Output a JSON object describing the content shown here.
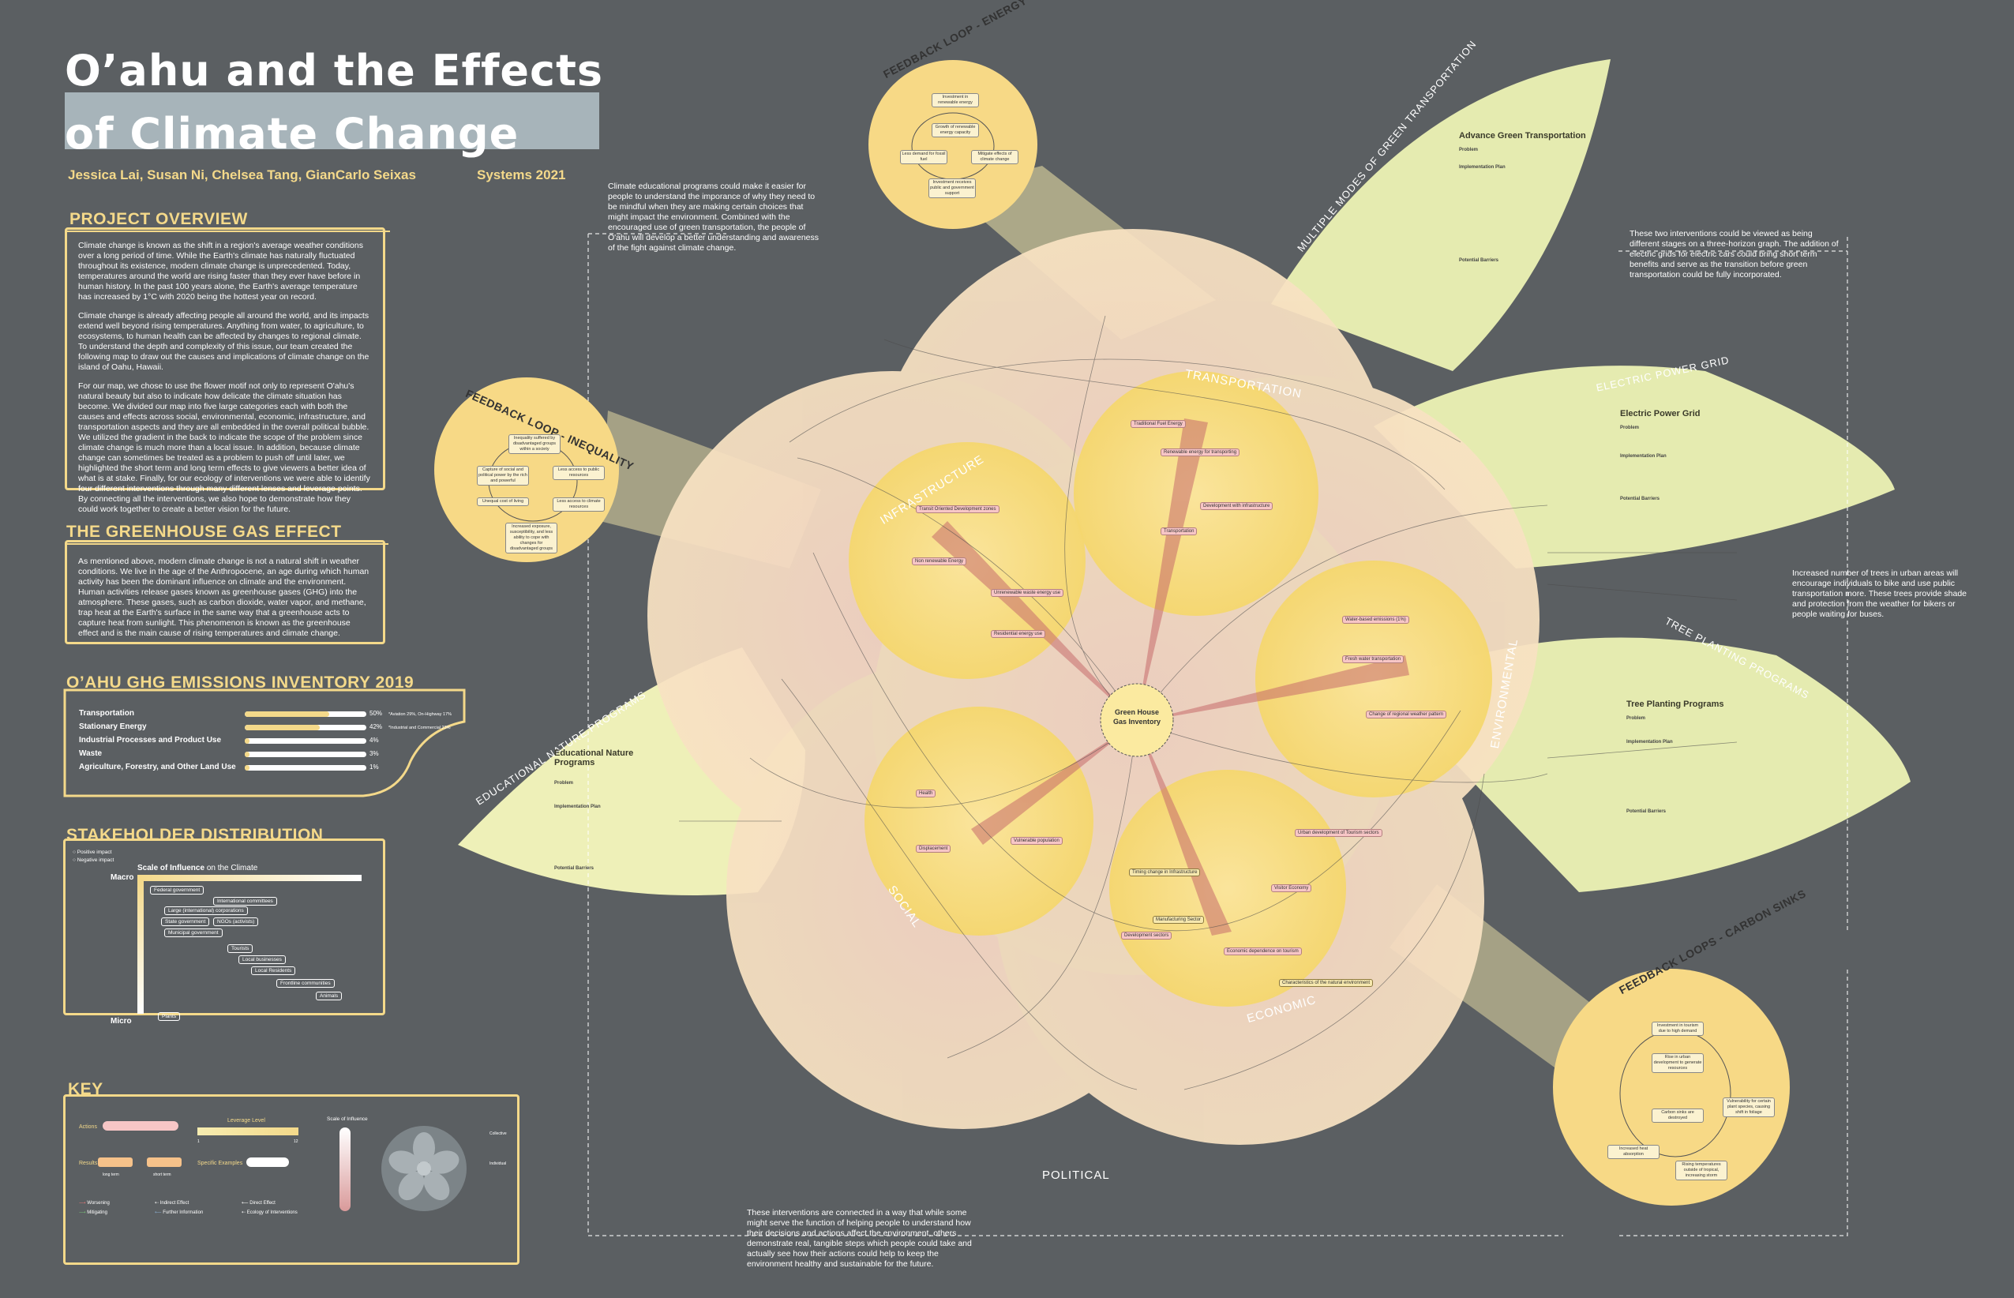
{
  "title": {
    "line1": "O’ahu and the Effects",
    "line2": "of Climate Change"
  },
  "authors": "Jessica Lai, Susan Ni, Chelsea Tang, GianCarlo Seixas",
  "course": "Systems 2021",
  "project_overview": {
    "heading": "PROJECT OVERVIEW",
    "p1": "Climate change is known as the shift in a region's average weather conditions over a long period of time. While the Earth's climate has naturally fluctuated throughout its existence, modern climate change is unprecedented. Today, temperatures around the world are rising faster than they ever have before in human history. In the past 100 years alone, the Earth's average temperature has increased by 1°C with 2020 being the hottest year on record.",
    "p2": "Climate change is already affecting people all around the world, and its impacts extend well beyond rising temperatures. Anything from water, to agriculture, to ecosystems, to human health can be affected by changes to regional climate. To understand the depth and complexity of this issue, our team created the following map to draw out the causes and implications of climate change on the island of Oahu, Hawaii.",
    "p3": "For our map, we chose to use the flower motif not only to represent O'ahu's natural beauty but also to indicate how delicate the climate situation has become. We divided our map into five large categories each with both the causes and effects across social, environmental, economic, infrastructure, and transportation aspects and they are all embedded in the overall political bubble. We utilized the gradient in the back to indicate the scope of the problem since climate change is much more than a local issue. In addition, because climate change can sometimes be treated as a problem to push off until later, we highlighted the short term and long term effects to give viewers a better idea of what is at stake. Finally, for our ecology of interventions we were able to identify four different interventions through many different lenses and leverage points. By connecting all the interventions, we also hope to demonstrate how they could work together to create a better vision for the future."
  },
  "greenhouse": {
    "heading": "THE GREENHOUSE GAS EFFECT",
    "text": "As mentioned above, modern climate change is not a natural shift in weather conditions. We live in the age of the Anthropocene, an age during which human activity has been the dominant influence on climate and the environment. Human activities release gases known as greenhouse gases (GHG) into the atmosphere. These gases, such as carbon dioxide, water vapor, and methane, trap heat at the Earth's surface in the same way that a greenhouse acts to capture heat from sunlight. This phenomenon is known as the greenhouse effect and is the main cause of rising temperatures and climate change."
  },
  "ghg_inventory": {
    "heading": "O’AHU GHG EMISSIONS INVENTORY 2019",
    "rows": [
      {
        "label": "Transportation",
        "value": 50,
        "text": "50%",
        "note": "*Aviation 29%, On-Highway 17%"
      },
      {
        "label": "Stationary Energy",
        "value": 42,
        "text": "42%",
        "note": "*Industrial and Commercial 23%"
      },
      {
        "label": "Industrial Processes and Product Use",
        "value": 4,
        "text": "4%",
        "note": ""
      },
      {
        "label": "Waste",
        "value": 3,
        "text": "3%",
        "note": ""
      },
      {
        "label": "Agriculture, Forestry, and Other Land Use",
        "value": 1,
        "text": "1%",
        "note": ""
      }
    ]
  },
  "stakeholders": {
    "heading": "STAKEHOLDER DISTRIBUTION",
    "legend_pos": "Positive impact",
    "legend_neg": "Negative impact",
    "scale_title": "Scale of Influence",
    "scale_suffix": "on the Climate",
    "macro": "Macro",
    "micro": "Micro",
    "items": [
      "Federal government",
      "International committees",
      "Large (international) corporations",
      "State government",
      "NGOs (activists)",
      "Municipal government",
      "Tourists",
      "Local businesses",
      "Local Residents",
      "Frontline communities",
      "Animals",
      "Plants"
    ]
  },
  "key": {
    "heading": "KEY",
    "actions": "Actions",
    "leverage": "Leverage Level",
    "lev_low": "1",
    "lev_high": "12",
    "results": "Results",
    "long_term": "long term",
    "short_term": "short term",
    "specific": "Specific Examples",
    "scale": "Scale of Influence",
    "collective": "Collective",
    "individual": "Individual",
    "worsening": "Worsening",
    "mitigating": "Mitigating",
    "indirect": "Indirect Effect",
    "further": "Further Information",
    "direct": "Direct Effect",
    "ecology": "Ecology of Interventions"
  },
  "petals": {
    "transportation": "TRANSPORTATION",
    "infrastructure": "INFRASTRUCTURE",
    "environmental": "ENVIRONMENTAL",
    "social": "SOCIAL",
    "economic": "ECONOMIC",
    "political": "POLITICAL",
    "center": "Green House Gas Inventory"
  },
  "leaves": {
    "green_transport_arc": "MULTIPLE MODES OF GREEN TRANSPORTATION",
    "grid_arc": "ELECTRIC POWER GRID",
    "tree_arc": "TREE PLANTING PROGRAMS",
    "edu_arc": "EDUCATIONAL NATURE PROGRAMS",
    "green_transport_title": "Advance Green Transportation",
    "grid_title": "Electric Power Grid",
    "tree_title": "Tree Planting Programs",
    "edu_title": "Educational Nature Programs",
    "problem": "Problem",
    "impl": "Implementation Plan",
    "barriers": "Potential Barriers"
  },
  "feedback": {
    "energy": "FEEDBACK LOOP - ENERGY",
    "inequality": "FEEDBACK LOOP - INEQUALITY",
    "carbon": "FEEDBACK LOOPS - CARBON SINKS",
    "energy_nodes": [
      "Investment in renewable energy",
      "Growth of renewable energy capacity",
      "Mitigate effects of climate change",
      "Less demand for fossil fuel",
      "Investment receives public and government support"
    ],
    "ineq_nodes": [
      "Inequality suffered by disadvantaged groups within a society",
      "Capture of social and political power by the rich and powerful",
      "Less access to public resources",
      "Unequal cost of living",
      "Less access to climate resources",
      "Increased exposure, susceptibility, and less ability to cope with changes for disadvantaged groups"
    ],
    "carbon_nodes": [
      "Investment in tourism due to high demand",
      "Rise in urban development to generate resources",
      "Carbon sinks are destroyed",
      "Vulnerability for certain plant species, causing shift in foliage",
      "Increased heat absorption",
      "Rising temperatures outside of tropical, increasing storm"
    ]
  },
  "notes": {
    "edu": "Climate educational programs could make it easier for people to understand the imporance of why they need to be mindful when they are making certain choices that might impact the environment. Combined with the encouraged use of green transportation, the people of O'ahu will develop a better understanding and awareness of the fight against climate change.",
    "horizon": "These two interventions could be viewed as being different stages on a three-horizon graph. The addition of electric grids for electric cars could bring short term benefits and serve as the transition before green transportation could be fully incorporated.",
    "trees": "Increased number of trees in urban areas will encourage individuals to bike and use public transportation more. These trees provide shade and protection from the weather for bikers or people waiting for buses.",
    "connected": "These interventions are connected in a way that while some might serve the function of helping people to understand how their decisions and actions affect the environment, others demonstrate real, tangible steps which people could take and actually see how their actions could help to keep the environment healthy and sustainable for the future."
  },
  "colors": {
    "background": "#5b5f62",
    "accent": "#f4d98a",
    "petal": "#f9e3b0",
    "leaf": "#e5ebb0",
    "node_pink": "#f7c6c6"
  }
}
